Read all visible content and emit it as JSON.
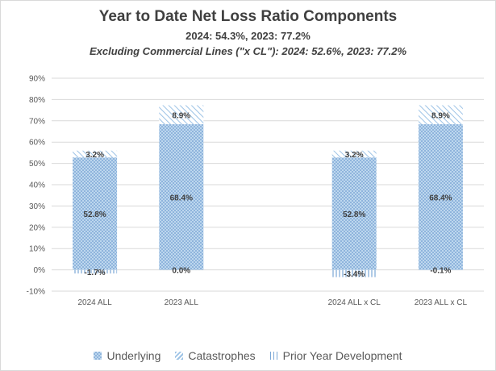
{
  "chart_data": {
    "type": "bar",
    "stacked": true,
    "title": "Year to Date Net Loss Ratio Components",
    "subtitle": "2024: 54.3%, 2023: 77.2%",
    "subtitle2": "Excluding Commercial Lines (\"x CL\"): 2024: 52.6%, 2023: 77.2%",
    "categories": [
      "2024 ALL",
      "2023 ALL",
      "",
      "2024 ALL x CL",
      "2023 ALL x CL"
    ],
    "series": [
      {
        "name": "Underlying",
        "values": [
          52.8,
          68.4,
          null,
          52.8,
          68.4
        ],
        "labels": [
          "52.8%",
          "68.4%",
          "",
          "52.8%",
          "68.4%"
        ],
        "color": "#9dc3e6"
      },
      {
        "name": "Catastrophes",
        "values": [
          3.2,
          8.9,
          null,
          3.2,
          8.9
        ],
        "labels": [
          "3.2%",
          "8.9%",
          "",
          "3.2%",
          "8.9%"
        ],
        "color": "#9dc3e6"
      },
      {
        "name": "Prior Year Development",
        "values": [
          -1.7,
          0.0,
          null,
          -3.4,
          -0.1
        ],
        "labels": [
          "-1.7%",
          "0.0%",
          "",
          "-3.4%",
          "-0.1%"
        ],
        "color": "#9dc3e6"
      }
    ],
    "ylim": [
      -10,
      90
    ],
    "yticks": [
      -10,
      0,
      10,
      20,
      30,
      40,
      50,
      60,
      70,
      80,
      90
    ],
    "ytick_labels": [
      "-10%",
      "0%",
      "10%",
      "20%",
      "30%",
      "40%",
      "50%",
      "60%",
      "70%",
      "80%",
      "90%"
    ],
    "grid": true,
    "legend_position": "bottom"
  }
}
